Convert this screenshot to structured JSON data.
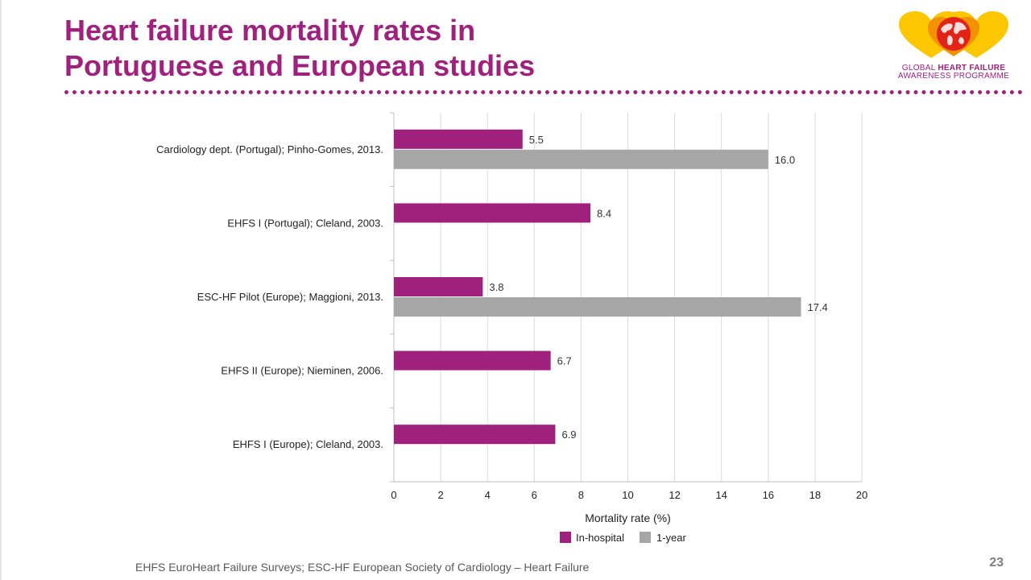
{
  "slide": {
    "title_line1": "Heart failure mortality rates in",
    "title_line2": "Portuguese and European studies",
    "footer": "EHFS EuroHeart Failure Surveys; ESC-HF European Society of Cardiology – Heart Failure",
    "page_number": "23"
  },
  "logo": {
    "line1_prefix": "GLOBAL ",
    "line1_emphasis": "HEART FAILURE",
    "line2": "AWARENESS PROGRAMME"
  },
  "colors": {
    "title": "#a0207e",
    "in_hospital": "#a0207e",
    "one_year": "#a6a6a6",
    "gridline": "#d9d9d9",
    "logo_orange": "#f39200",
    "logo_yellow": "#fcc600",
    "logo_red": "#e2231a"
  },
  "chart_data": {
    "type": "bar",
    "orientation": "horizontal",
    "categories": [
      "Cardiology dept. (Portugal); Pinho-Gomes, 2013.",
      "EHFS I (Portugal); Cleland, 2003.",
      "ESC-HF Pilot (Europe); Maggioni, 2013.",
      "EHFS II (Europe); Nieminen, 2006.",
      "EHFS I (Europe); Cleland, 2003."
    ],
    "series": [
      {
        "name": "In-hospital",
        "values": [
          5.5,
          8.4,
          3.8,
          6.7,
          6.9
        ],
        "labels": [
          "5.5",
          "8.4",
          "3.8",
          "6.7",
          "6.9"
        ]
      },
      {
        "name": "1-year",
        "values": [
          16.0,
          null,
          17.4,
          null,
          null
        ],
        "labels": [
          "16.0",
          "",
          "17.4",
          "",
          ""
        ]
      }
    ],
    "xlabel": "Mortality rate (%)",
    "xlim": [
      0,
      20
    ],
    "xticks": [
      "0",
      "2",
      "4",
      "6",
      "8",
      "10",
      "12",
      "14",
      "16",
      "18",
      "20"
    ],
    "grid": "vertical",
    "legend_position": "bottom"
  }
}
